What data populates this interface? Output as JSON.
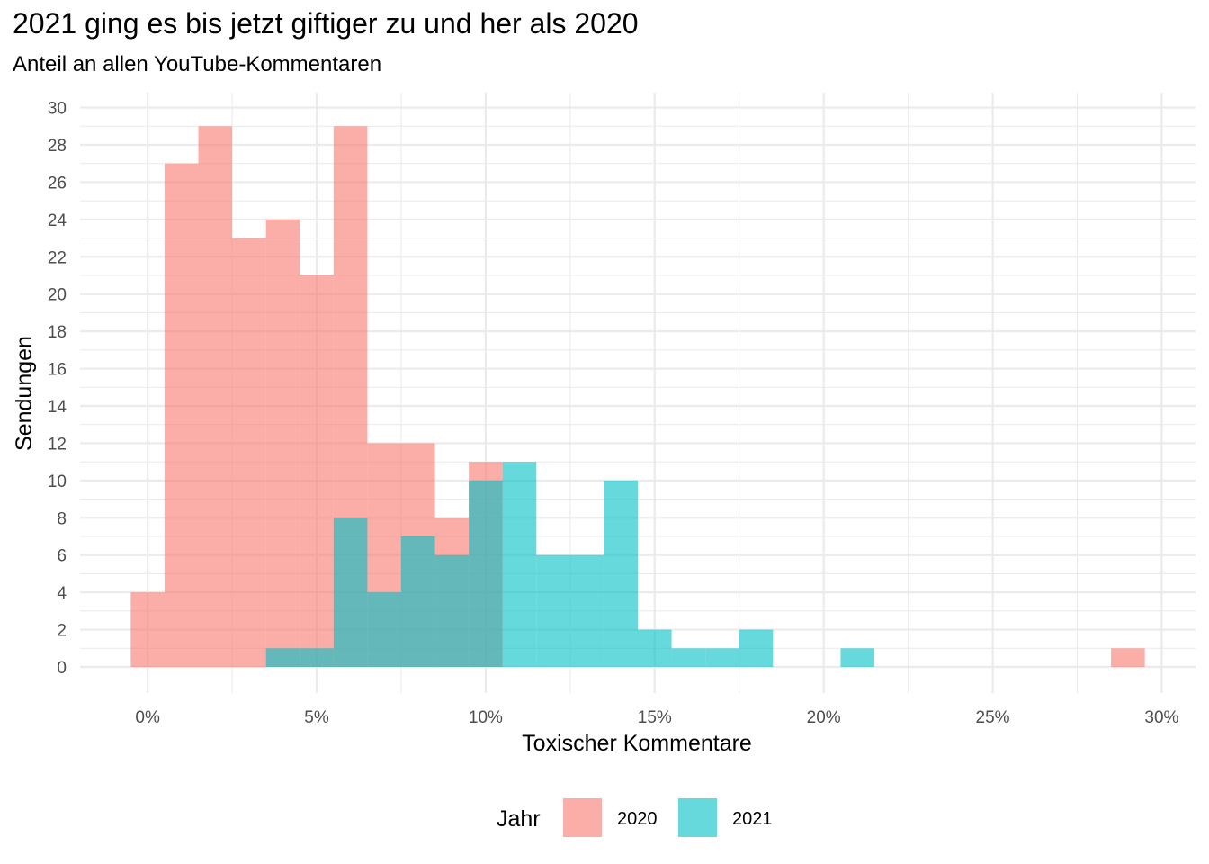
{
  "chart_data": {
    "type": "bar",
    "title": "2021 ging es bis jetzt giftiger zu und her als 2020",
    "subtitle": "Anteil an allen YouTube-Kommentaren",
    "xlabel": "Toxischer Kommentare",
    "ylabel": "Sendungen",
    "xlim": [
      -2,
      31
    ],
    "ylim": [
      -1.4,
      30.8
    ],
    "x_ticks": [
      0,
      5,
      10,
      15,
      20,
      25,
      30
    ],
    "x_tick_labels": [
      "0%",
      "5%",
      "10%",
      "15%",
      "20%",
      "25%",
      "30%"
    ],
    "y_ticks": [
      0,
      2,
      4,
      6,
      8,
      10,
      12,
      14,
      16,
      18,
      20,
      22,
      24,
      26,
      28,
      30
    ],
    "y_tick_labels": [
      "0",
      "2",
      "4",
      "6",
      "8",
      "10",
      "12",
      "14",
      "16",
      "18",
      "20",
      "22",
      "24",
      "26",
      "28",
      "30"
    ],
    "bin_width": 1,
    "grid": true,
    "legend_title": "Jahr",
    "legend_position": "bottom",
    "series": [
      {
        "name": "2020",
        "color": "#F8766D",
        "bin_centers": [
          0,
          1,
          2,
          3,
          4,
          5,
          6,
          7,
          8,
          9,
          10,
          29
        ],
        "counts": [
          4,
          27,
          29,
          23,
          24,
          21,
          29,
          12,
          12,
          8,
          11,
          1
        ]
      },
      {
        "name": "2021",
        "color": "#00BFC4",
        "bin_centers": [
          4,
          5,
          6,
          7,
          8,
          9,
          10,
          11,
          12,
          13,
          14,
          15,
          16,
          17,
          18,
          21
        ],
        "counts": [
          1,
          1,
          8,
          4,
          7,
          6,
          10,
          11,
          6,
          6,
          10,
          2,
          1,
          1,
          2,
          1
        ]
      }
    ]
  }
}
